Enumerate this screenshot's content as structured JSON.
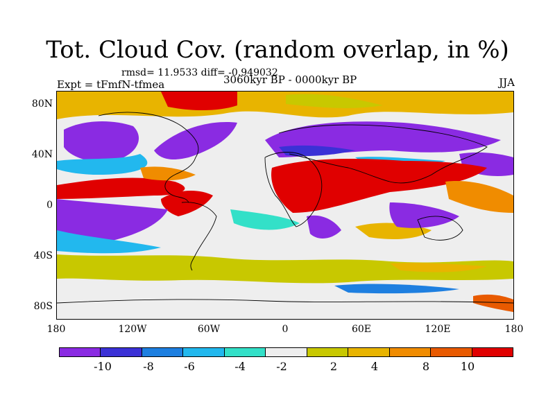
{
  "title": "Tot. Cloud Cov. (random overlap, in %)",
  "stats": "rmsd= 11.9533 diff= -0.949032",
  "experiment": "Expt = tFmfN-tfmea",
  "period": "3060kyr BP - 0000kyr BP",
  "season": "JJA",
  "map": {
    "projection": "cylindrical equidistant",
    "lon_range": [
      -180,
      180
    ],
    "lat_range": [
      -90,
      90
    ],
    "y_ticks": [
      "80N",
      "40N",
      "0",
      "40S",
      "80S"
    ],
    "x_ticks": [
      "180",
      "120W",
      "60W",
      "0",
      "60E",
      "120E",
      "180"
    ],
    "overlay": "continent outlines"
  },
  "colorbar": {
    "colors": [
      "#8a2be2",
      "#3b31d6",
      "#1e7fe0",
      "#22b8ee",
      "#33e0c8",
      "#eeeeee",
      "#c8c800",
      "#e8b400",
      "#f08c00",
      "#e85a00",
      "#e00000"
    ],
    "labels": [
      "-10",
      "-8",
      "-6",
      "-4",
      "-2",
      "2",
      "4",
      "8",
      "10"
    ]
  }
}
